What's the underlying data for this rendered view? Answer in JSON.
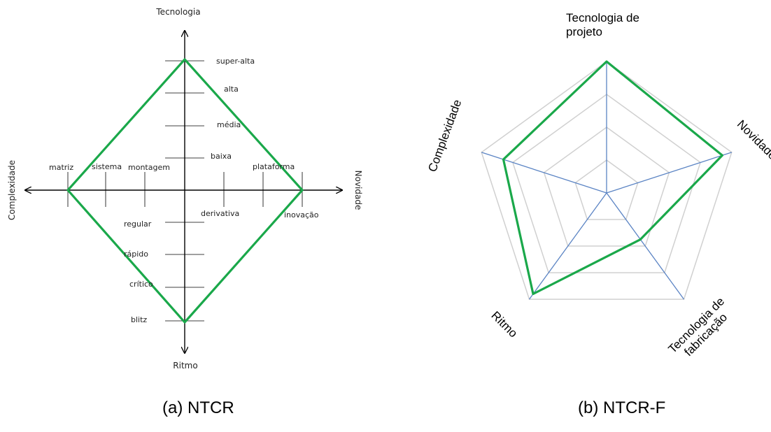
{
  "diagram_a": {
    "caption": "(a) NTCR",
    "axes": {
      "top": "Tecnologia",
      "bottom": "Ritmo",
      "left": "Complexidade",
      "right": "Novidade"
    },
    "tecnologia_levels": [
      "super-alta",
      "alta",
      "média",
      "baixa"
    ],
    "ritmo_levels": [
      "regular",
      "rápido",
      "crítico",
      "blitz"
    ],
    "complexidade_levels": [
      "matriz",
      "sistema",
      "montagem"
    ],
    "novidade_levels": [
      "derivativa",
      "plataforma",
      "inovação"
    ],
    "profile": {
      "tecnologia": "super-alta",
      "novidade": "inovação",
      "ritmo": "blitz",
      "complexidade": "matriz"
    },
    "profile_color": "#1aa84a",
    "axis_color": "#000000"
  },
  "diagram_b": {
    "caption": "(b) NTCR-F",
    "axes": [
      {
        "key": "tecnologia_projeto",
        "label_lines": [
          "Tecnologia de",
          "projeto"
        ]
      },
      {
        "key": "novidade",
        "label_lines": [
          "Novidade"
        ]
      },
      {
        "key": "tecnologia_fabricacao",
        "label_lines": [
          "Tecnologia de",
          "fabricação"
        ]
      },
      {
        "key": "ritmo",
        "label_lines": [
          "Ritmo"
        ]
      },
      {
        "key": "complexidade",
        "label_lines": [
          "Complexidade"
        ]
      }
    ],
    "max_level": 4,
    "profile_values": [
      4,
      3.7,
      1.75,
      3.8,
      3.3
    ],
    "profile_color": "#1aa84a",
    "axis_color": "#5b84c4",
    "grid_color": "#d0d0d0"
  }
}
